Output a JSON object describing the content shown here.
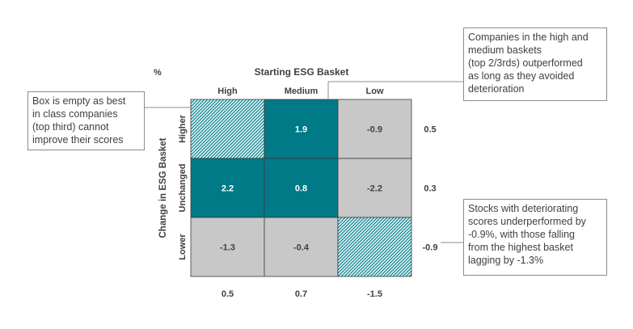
{
  "unit_label": "%",
  "chart_data": {
    "type": "heatmap",
    "title": "Starting ESG Basket",
    "xlabel": "Starting ESG Basket",
    "ylabel": "Change in ESG Basket",
    "columns": [
      "High",
      "Medium",
      "Low"
    ],
    "rows": [
      "Higher",
      "Unchanged",
      "Lower"
    ],
    "cells": [
      [
        null,
        1.9,
        -0.9
      ],
      [
        2.2,
        0.8,
        -2.2
      ],
      [
        -1.3,
        -0.4,
        null
      ]
    ],
    "cell_styles": [
      [
        "hatched",
        "solid",
        "grey"
      ],
      [
        "solid",
        "solid",
        "grey"
      ],
      [
        "grey",
        "grey",
        "hatched"
      ]
    ],
    "row_totals": [
      "0.5",
      "0.3",
      "-0.9"
    ],
    "column_totals": [
      "0.5",
      "0.7",
      "-1.5"
    ],
    "colors": {
      "teal": "#007a87",
      "grey": "#c8c8c8",
      "hatch_light": "#dff2f3"
    }
  },
  "callouts": {
    "empty_box": "Box is empty as best\nin class companies\n(top third) cannot\nimprove their scores",
    "outperformed": "Companies in the high and\nmedium baskets\n(top 2/3rds) outperformed\nas long as they avoided\ndeterioration",
    "deteriorating": "Stocks with deteriorating\nscores underperformed by\n-0.9%, with those falling\nfrom the highest basket\nlagging by -1.3%"
  }
}
